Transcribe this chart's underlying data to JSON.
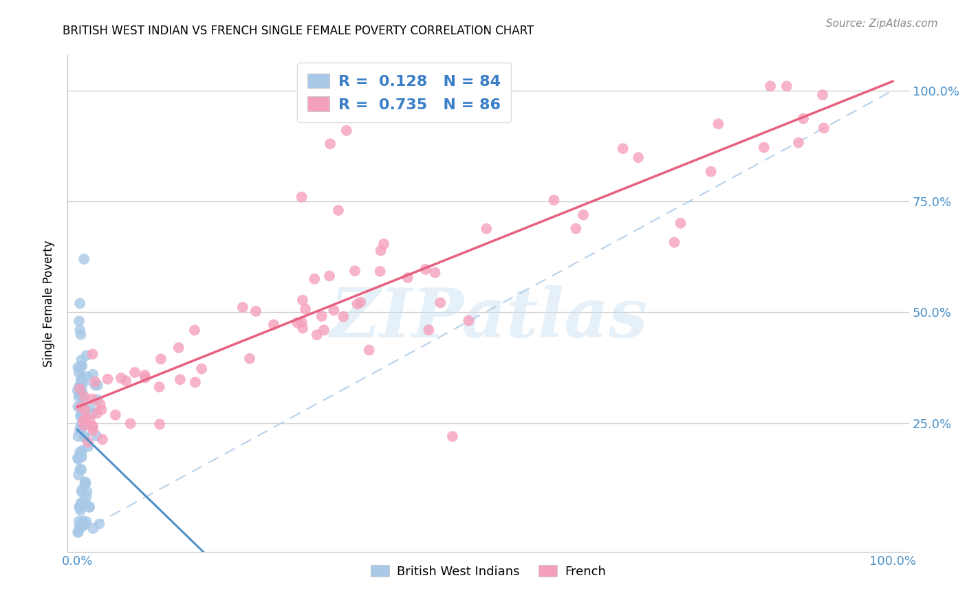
{
  "title": "BRITISH WEST INDIAN VS FRENCH SINGLE FEMALE POVERTY CORRELATION CHART",
  "source": "Source: ZipAtlas.com",
  "ylabel": "Single Female Poverty",
  "watermark": "ZIPatlas",
  "xlim": [
    0.0,
    1.0
  ],
  "ylim": [
    0.0,
    1.0
  ],
  "blue_R": 0.128,
  "blue_N": 84,
  "pink_R": 0.735,
  "pink_N": 86,
  "blue_color": "#a8c8e8",
  "pink_color": "#f4a0bc",
  "blue_line_color": "#5090c8",
  "pink_line_color": "#e86080",
  "dashed_line_color": "#b0cce8",
  "legend_label_blue": "British West Indians",
  "legend_label_pink": "French"
}
